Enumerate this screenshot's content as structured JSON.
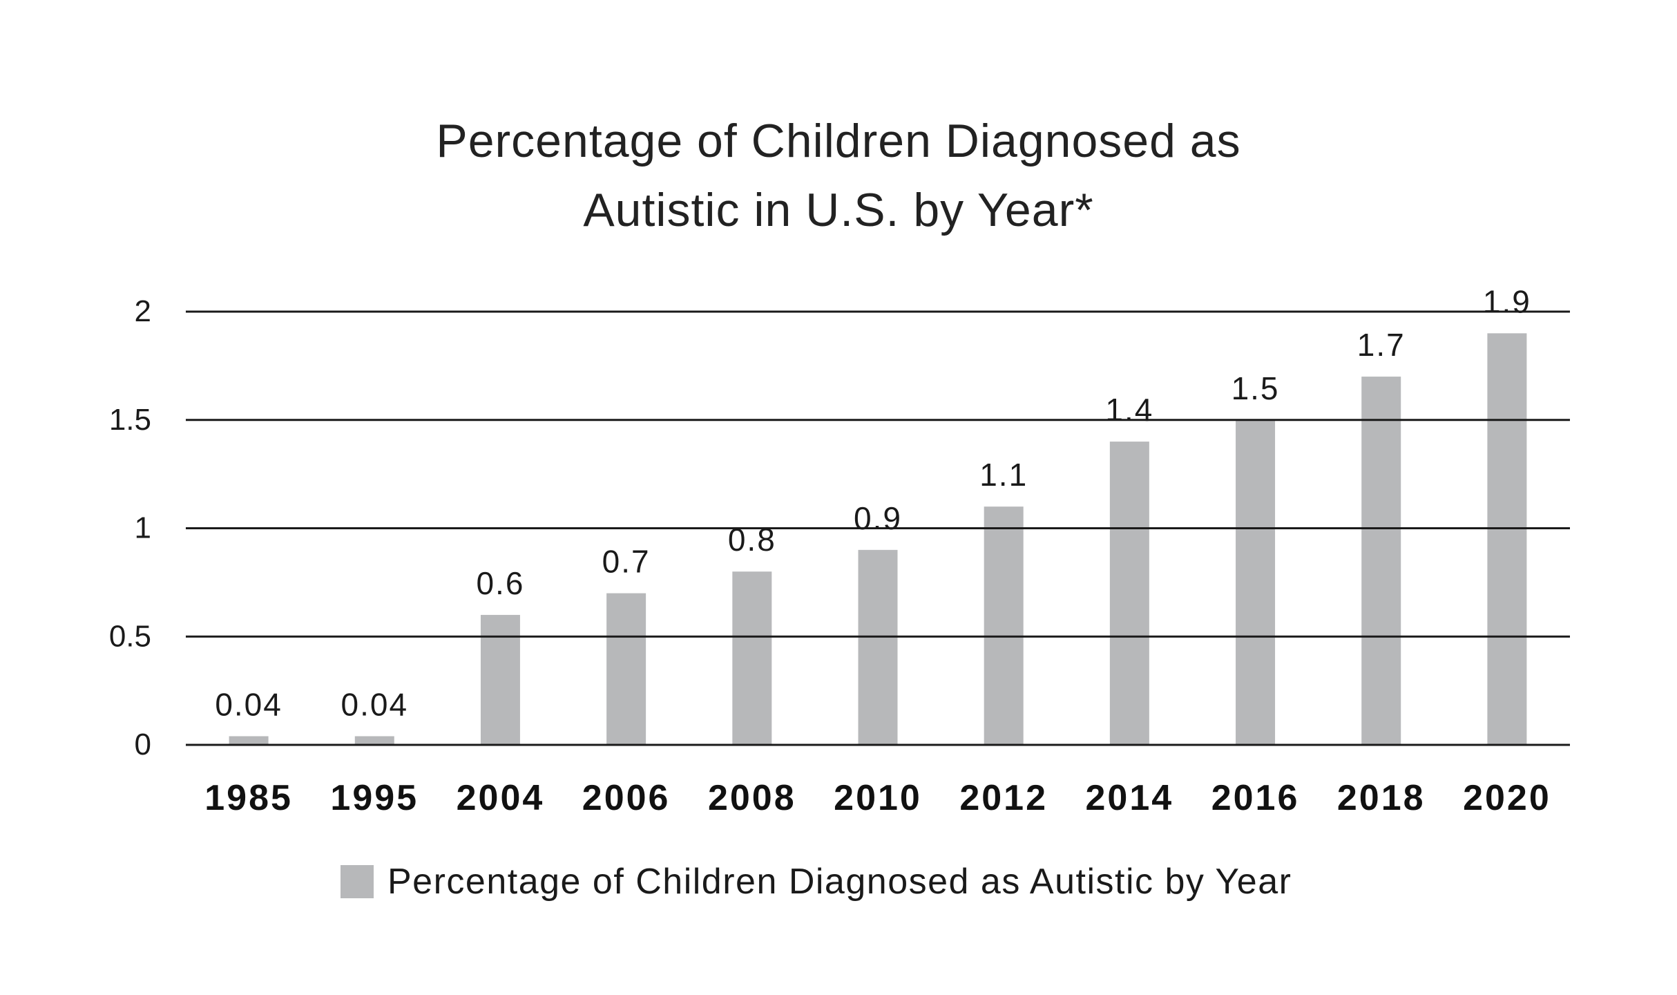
{
  "chart_data": {
    "type": "bar",
    "title_lines": [
      "Percentage of Children Diagnosed as",
      "Autistic in U.S. by Year*"
    ],
    "categories": [
      "1985",
      "1995",
      "2004",
      "2006",
      "2008",
      "2010",
      "2012",
      "2014",
      "2016",
      "2018",
      "2020"
    ],
    "series": [
      {
        "name": "Percentage of Children Diagnosed as Autistic by Year",
        "values": [
          0.04,
          0.04,
          0.6,
          0.7,
          0.8,
          0.9,
          1.1,
          1.4,
          1.5,
          1.7,
          1.9
        ],
        "labels": [
          "0.04",
          "0.04",
          "0.6",
          "0.7",
          "0.8",
          "0.9",
          "1.1",
          "1.4",
          "1.5",
          "1.7",
          "1.9"
        ],
        "color": "#b7b8ba"
      }
    ],
    "xlabel": "",
    "ylabel": "",
    "ylim": [
      0,
      2
    ],
    "yticks": [
      "0",
      "0.5",
      "1",
      "1.5",
      "2"
    ],
    "grid": true,
    "gridline_color": "#1a1a1a",
    "legend": "bottom-center"
  }
}
